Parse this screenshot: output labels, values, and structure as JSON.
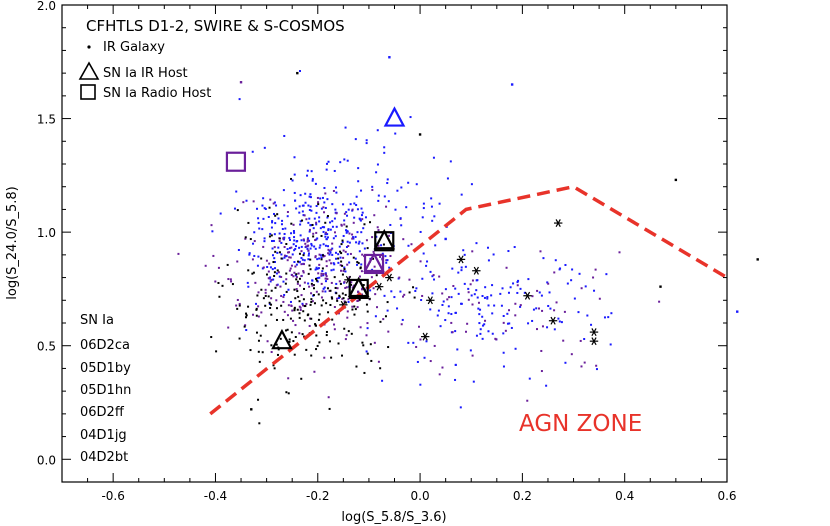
{
  "chart_data": {
    "type": "scatter",
    "title": "CFHTLS D1-2, SWIRE & S-COSMOS",
    "xlabel": "log(S_5.8/S_3.6)",
    "ylabel": "log(S_24.0/S_5.8)",
    "xlim": [
      -0.7,
      0.6
    ],
    "ylim": [
      -0.1,
      2.0
    ],
    "xticks": [
      "-0.6",
      "-0.4",
      "-0.2",
      "0.0",
      "0.2",
      "0.4",
      "0.6"
    ],
    "yticks": [
      "0.0",
      "0.5",
      "1.0",
      "1.5",
      "2.0"
    ],
    "legend": {
      "position": "top-left",
      "entries": [
        {
          "marker": "dot",
          "label": "IR Galaxy"
        },
        {
          "marker": "triangle",
          "label": "SN Ia IR Host"
        },
        {
          "marker": "square",
          "label": "SN Ia Radio Host"
        }
      ]
    },
    "sn_list": {
      "header": "SN Ia",
      "names": [
        "06D2ca",
        "05D1by",
        "05D1hn",
        "06D2ff",
        "04D1jg",
        "04D2bt"
      ]
    },
    "annotation": "AGN ZONE",
    "colors": {
      "black": "#000000",
      "blue": "#1a1aff",
      "purple": "#6a1f9a",
      "agn": "#e8332a"
    },
    "agn_boundary": [
      [
        -0.41,
        0.2
      ],
      [
        0.09,
        1.1
      ],
      [
        0.3,
        1.2
      ],
      [
        0.6,
        0.8
      ]
    ],
    "sn_ir_hosts": [
      {
        "x": -0.27,
        "y": 0.52,
        "color": "#000000"
      },
      {
        "x": -0.05,
        "y": 1.5,
        "color": "#1a1aff"
      },
      {
        "x": -0.12,
        "y": 0.75,
        "color": "#000000"
      },
      {
        "x": -0.09,
        "y": 0.86,
        "color": "#6a1f9a"
      },
      {
        "x": -0.07,
        "y": 0.96,
        "color": "#000000"
      }
    ],
    "sn_radio_hosts": [
      {
        "x": -0.36,
        "y": 1.31,
        "color": "#6a1f9a"
      },
      {
        "x": -0.12,
        "y": 0.75,
        "color": "#000000"
      },
      {
        "x": -0.09,
        "y": 0.86,
        "color": "#6a1f9a"
      },
      {
        "x": -0.07,
        "y": 0.96,
        "color": "#000000"
      }
    ],
    "asterisk_points": [
      [
        0.27,
        1.04
      ],
      [
        0.11,
        0.83
      ],
      [
        0.08,
        0.88
      ],
      [
        0.01,
        0.54
      ],
      [
        0.02,
        0.7
      ],
      [
        0.21,
        0.72
      ],
      [
        0.26,
        0.61
      ],
      [
        0.34,
        0.56
      ],
      [
        0.34,
        0.52
      ],
      [
        -0.14,
        0.79
      ],
      [
        -0.08,
        0.76
      ],
      [
        -0.06,
        0.8
      ],
      [
        -0.15,
        0.68
      ]
    ],
    "outlier_points": [
      {
        "x": -0.06,
        "y": 1.77,
        "color": "#1a1aff"
      },
      {
        "x": -0.24,
        "y": 1.7,
        "color": "#000000"
      },
      {
        "x": -0.35,
        "y": 1.66,
        "color": "#6a1f9a"
      },
      {
        "x": 0.5,
        "y": 1.23,
        "color": "#000000"
      },
      {
        "x": 0.66,
        "y": 0.88,
        "color": "#000000"
      },
      {
        "x": 0.62,
        "y": 0.65,
        "color": "#1a1aff"
      },
      {
        "x": 0.18,
        "y": 1.65,
        "color": "#1a1aff"
      },
      {
        "x": 0.0,
        "y": 1.43,
        "color": "#000000"
      },
      {
        "x": -0.33,
        "y": 0.22,
        "color": "#000000"
      },
      {
        "x": 0.05,
        "y": 0.97,
        "color": "#1a1aff"
      },
      {
        "x": 0.47,
        "y": 0.76,
        "color": "#000000"
      }
    ],
    "galaxy_cloud": [
      {
        "cx": -0.2,
        "cy": 0.97,
        "sx": 0.07,
        "sy": 0.13,
        "n": 300,
        "color": "#1a1aff"
      },
      {
        "cx": -0.2,
        "cy": 0.82,
        "sx": 0.08,
        "sy": 0.16,
        "n": 260,
        "color": "#6a1f9a"
      },
      {
        "cx": -0.22,
        "cy": 0.7,
        "sx": 0.08,
        "sy": 0.18,
        "n": 240,
        "color": "#000000"
      },
      {
        "cx": 0.12,
        "cy": 0.66,
        "sx": 0.12,
        "sy": 0.13,
        "n": 170,
        "color": "#1a1aff"
      },
      {
        "cx": 0.15,
        "cy": 0.65,
        "sx": 0.15,
        "sy": 0.15,
        "n": 70,
        "color": "#6a1f9a"
      },
      {
        "cx": -0.1,
        "cy": 1.2,
        "sx": 0.12,
        "sy": 0.18,
        "n": 80,
        "color": "#1a1aff"
      }
    ]
  }
}
